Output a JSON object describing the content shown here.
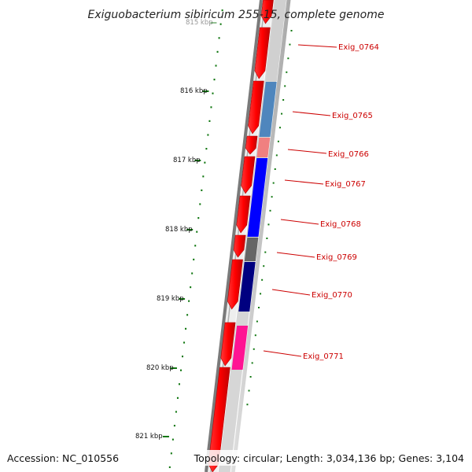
{
  "title": "Exiguobacterium sibiricum 255-15, complete genome",
  "accession": "Accession: NC_010556",
  "summary": "Topology: circular; Length: 3,034,136 bp; Genes: 3,104",
  "colors": {
    "backbone": "#7a7a7a",
    "tick": "#117711",
    "gene_label": "#cc0000",
    "forward_gene": "#ff0000",
    "band_bg": "#c8c8c8"
  },
  "kbp_labels": [
    "815 kbp",
    "816 kbp",
    "817 kbp",
    "818 kbp",
    "819 kbp",
    "820 kbp",
    "821 kbp"
  ],
  "genes": [
    {
      "name": "Exig_0764",
      "color": "#d0d0d0"
    },
    {
      "name": "Exig_0765",
      "color": "#4f86bd"
    },
    {
      "name": "Exig_0766",
      "color": "#f08080"
    },
    {
      "name": "Exig_0767",
      "color": "#0000ff"
    },
    {
      "name": "Exig_0768",
      "color": "#0000ff"
    },
    {
      "name": "Exig_0769",
      "color": "#666666"
    },
    {
      "name": "Exig_0770",
      "color": "#000080"
    },
    {
      "name": "Exig_0771",
      "color": "#ff1493"
    }
  ]
}
